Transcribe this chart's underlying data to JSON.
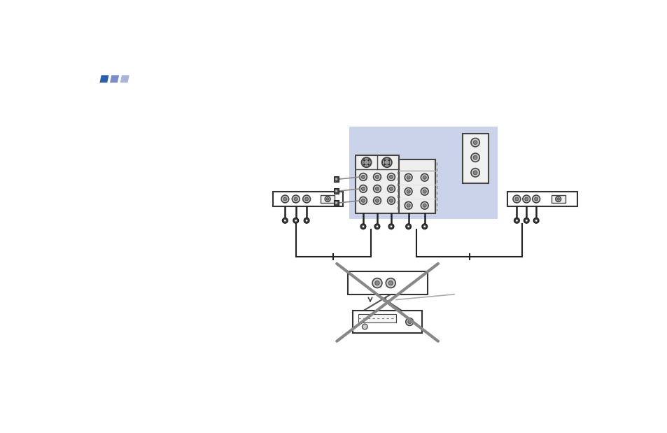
{
  "bg_color": "#ffffff",
  "logo_colors": [
    "#2d5fa8",
    "#7b8ec8",
    "#a8b4d8"
  ],
  "blue_highlight": "#c5cfe8",
  "wire_color": "#555555",
  "wire_color_dark": "#222222",
  "cross_color": "#888888",
  "device_ec": "#333333",
  "jack_fill": "#bbbbbb",
  "jack_fill_dark": "#444444"
}
